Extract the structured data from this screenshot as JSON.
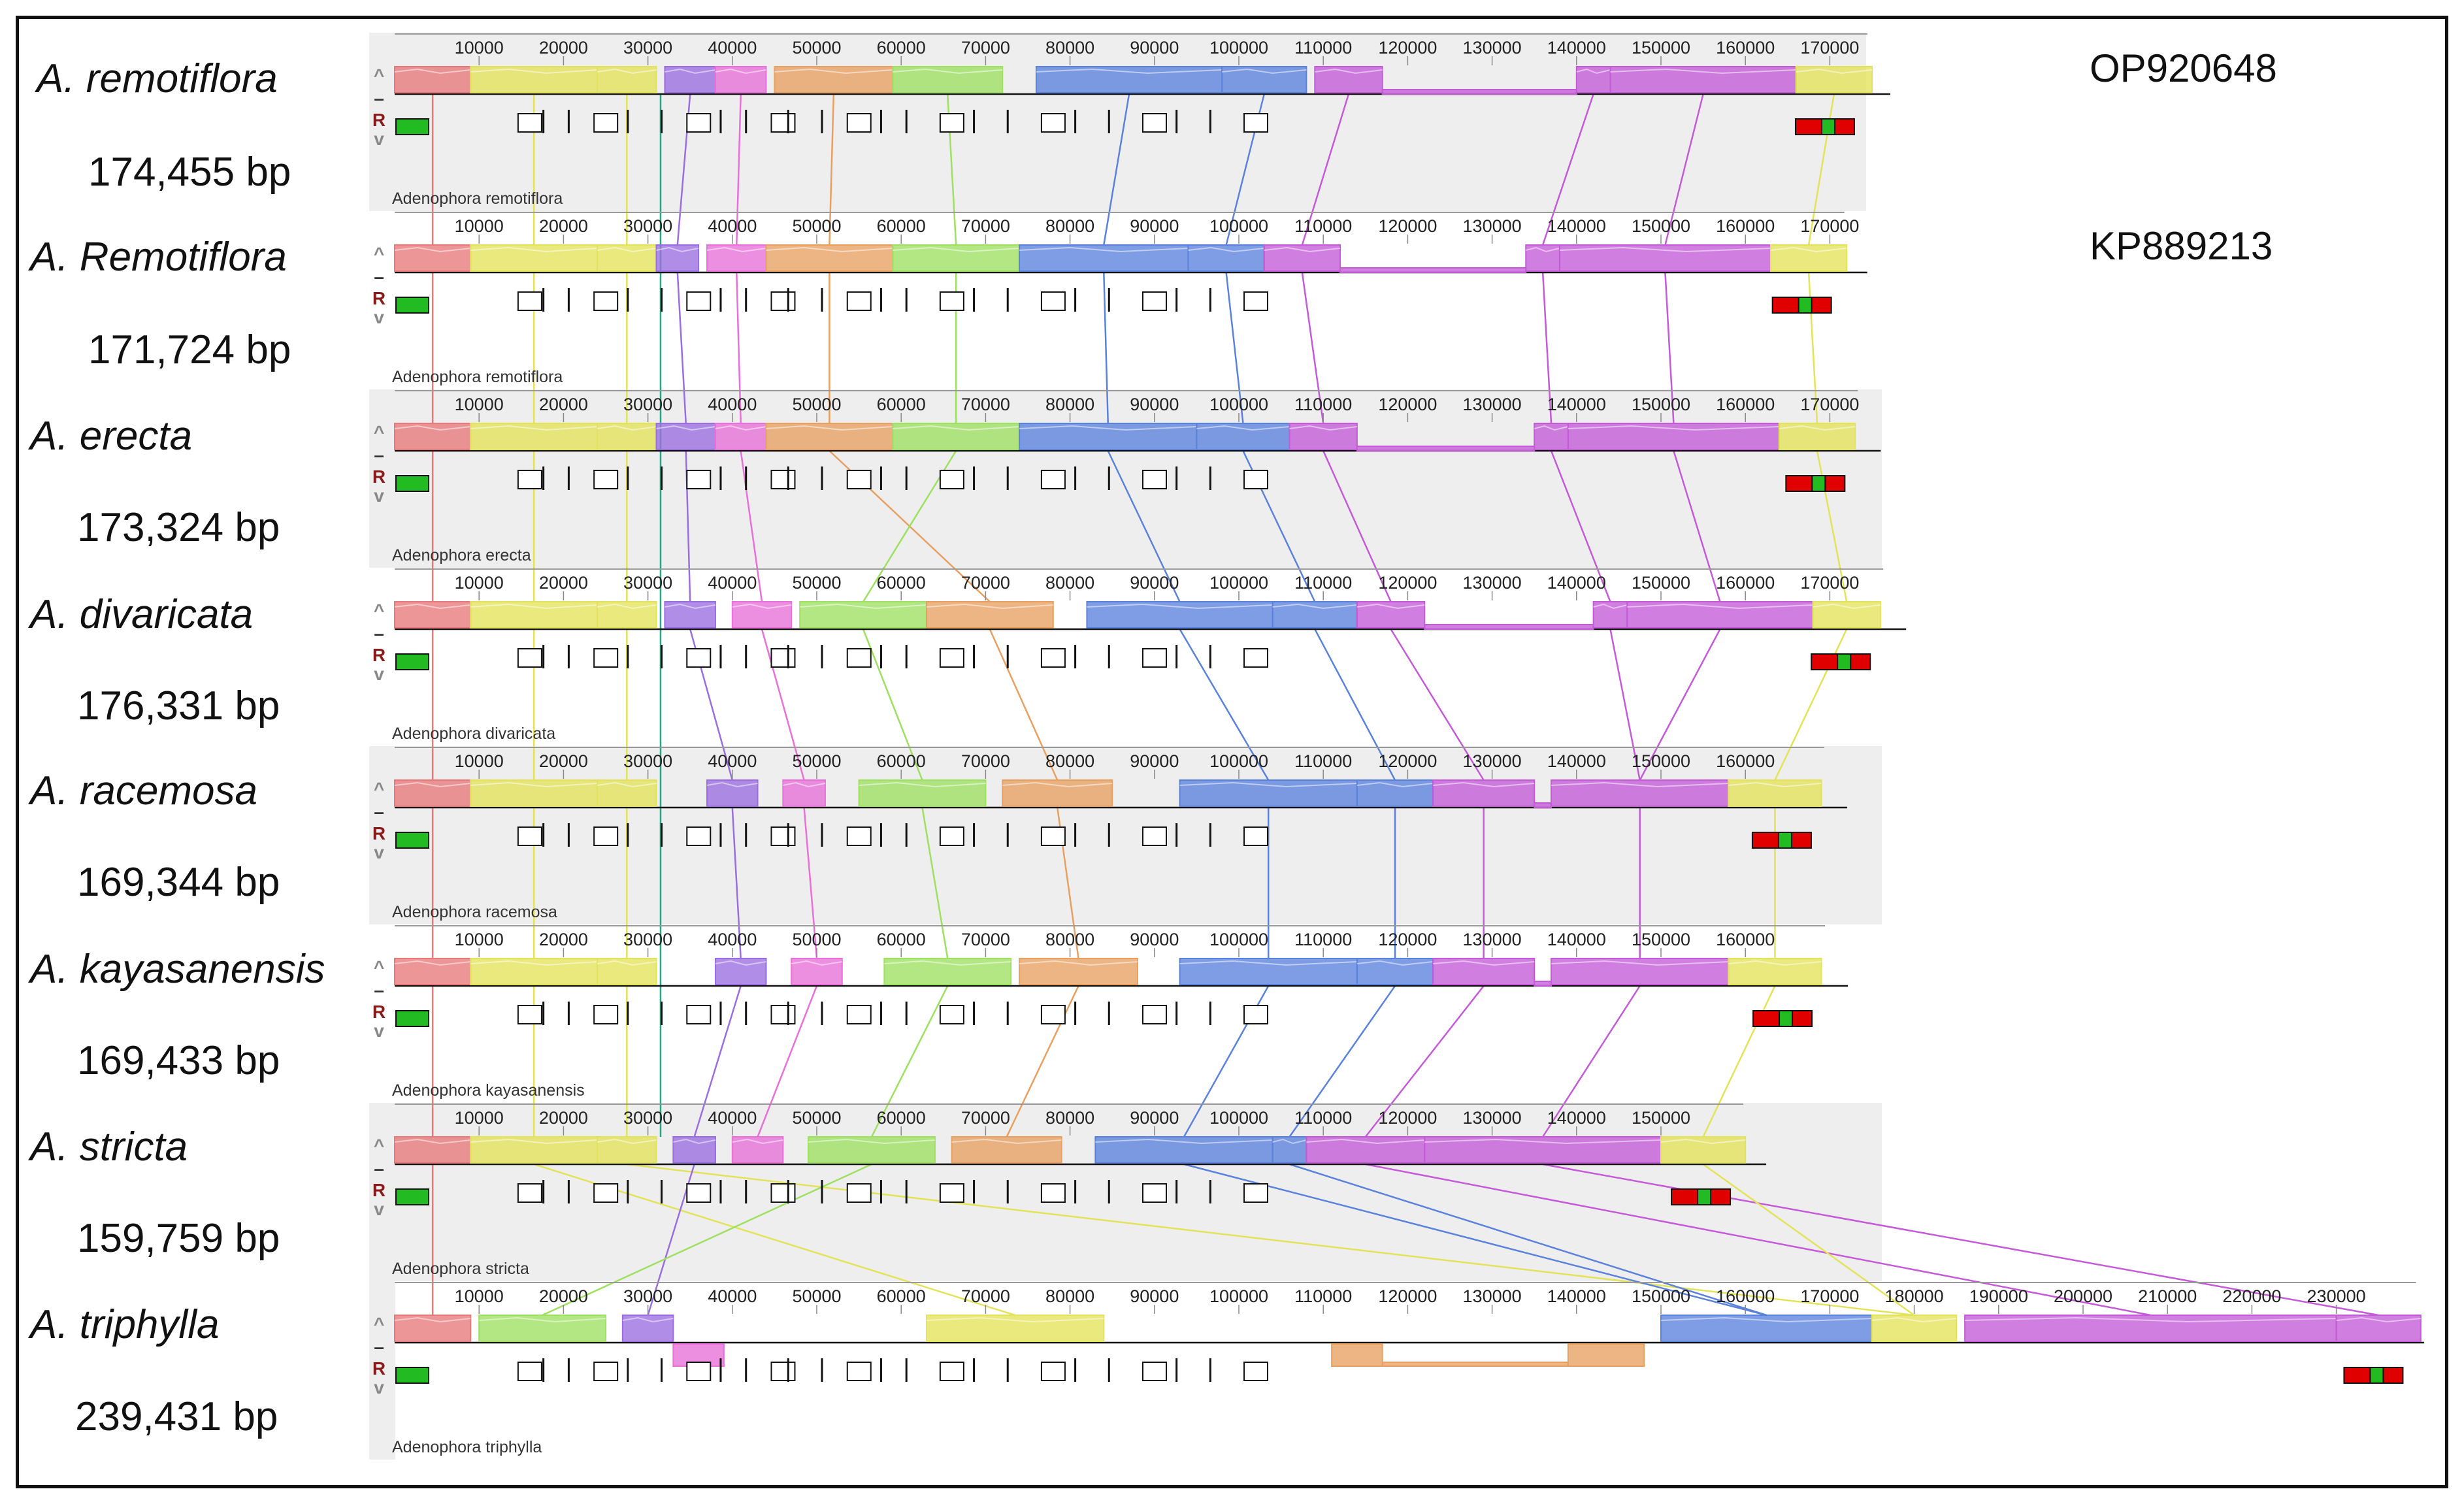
{
  "genomes": [
    {
      "species": "A. remotiflora",
      "length_label": "174,455 bp",
      "accession": "OP920648",
      "track_name": "Adenophora remotiflora",
      "length": 174455
    },
    {
      "species": "A. Remotiflora",
      "length_label": "171,724 bp",
      "accession": "KP889213",
      "track_name": "Adenophora remotiflora",
      "length": 171724
    },
    {
      "species": "A. erecta",
      "length_label": "173,324 bp",
      "accession": "",
      "track_name": "Adenophora erecta",
      "length": 173324
    },
    {
      "species": "A. divaricata",
      "length_label": "176,331 bp",
      "accession": "",
      "track_name": "Adenophora divaricata",
      "length": 176331
    },
    {
      "species": "A. racemosa",
      "length_label": "169,344 bp",
      "accession": "",
      "track_name": "Adenophora racemosa",
      "length": 169344
    },
    {
      "species": "A. kayasanensis",
      "length_label": "169,433 bp",
      "accession": "",
      "track_name": "Adenophora kayasanensis",
      "length": 169433
    },
    {
      "species": "A. stricta",
      "length_label": "159,759 bp",
      "accession": "",
      "track_name": "Adenophora stricta",
      "length": 159759
    },
    {
      "species": "A. triphylla",
      "length_label": "239,431 bp",
      "accession": "",
      "track_name": "Adenophora triphylla",
      "length": 239431
    }
  ],
  "block_colors": {
    "red": "#e8797a",
    "yellow": "#e3e35a",
    "purple": "#9a6ee0",
    "pink": "#e870d8",
    "orange": "#e8a060",
    "green": "#9ee060",
    "blue": "#5a82dc",
    "magenta": "#c45ad8"
  },
  "controls": {
    "up": "^",
    "minus": "–",
    "reverse": "R",
    "down": "v"
  }
}
